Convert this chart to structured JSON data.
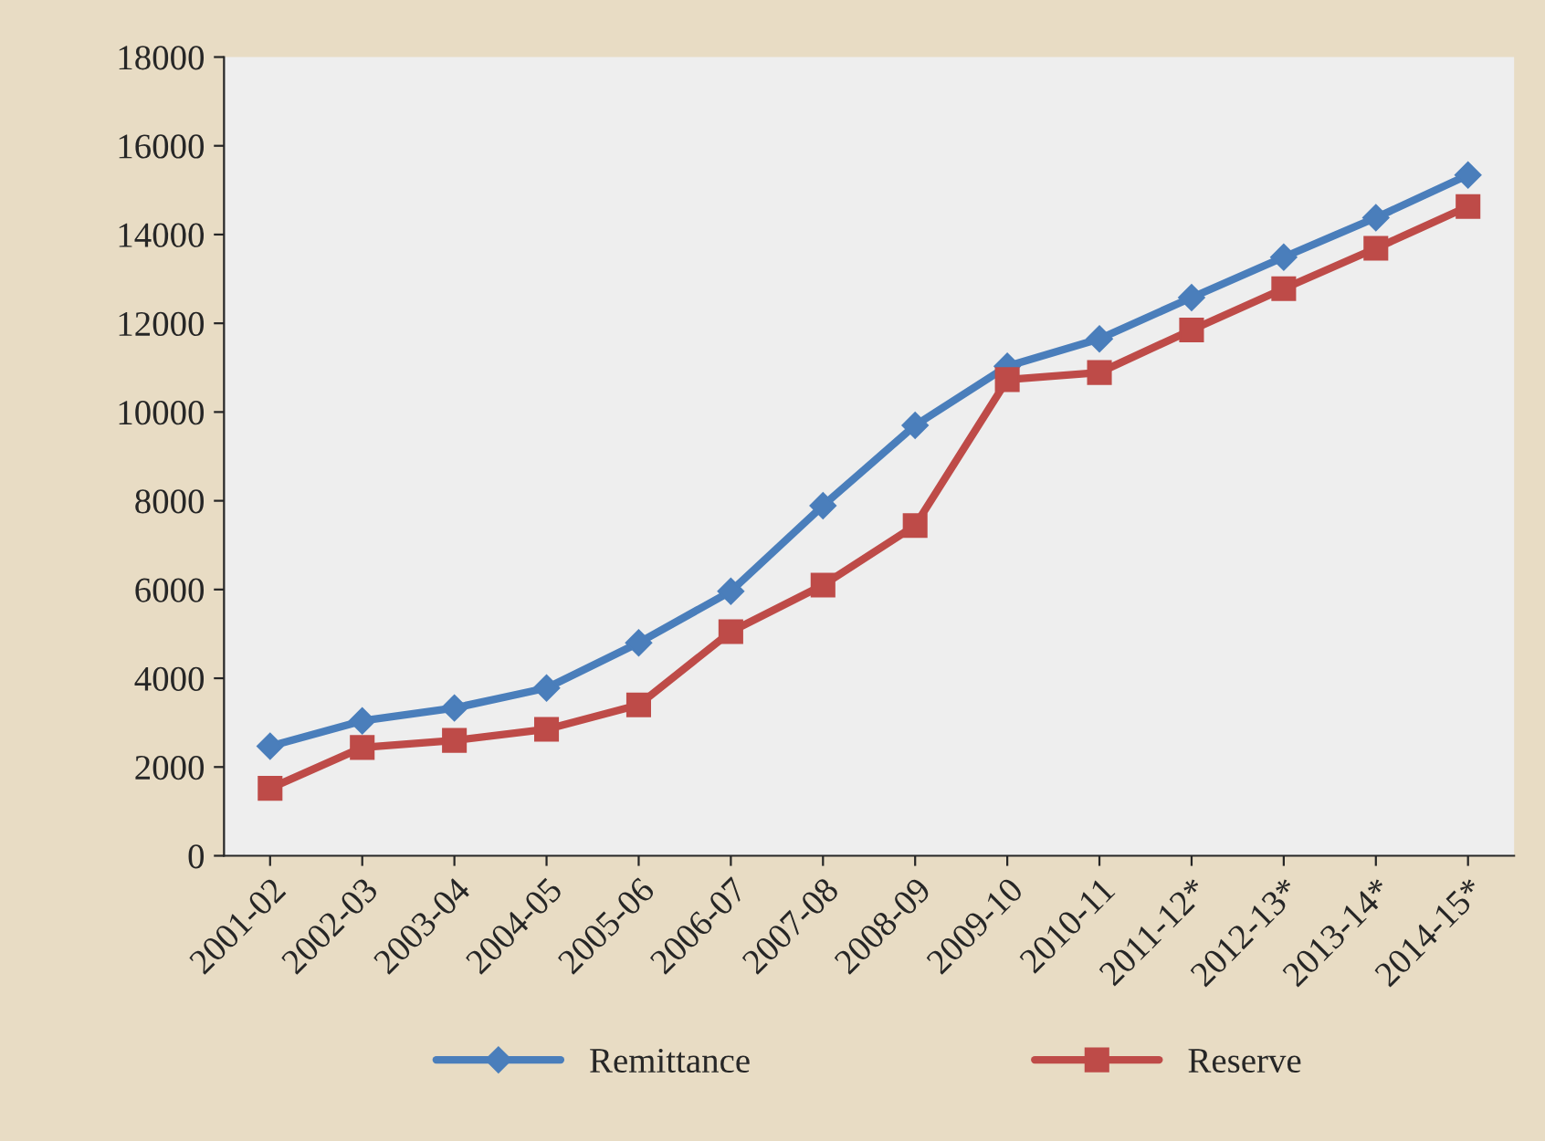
{
  "chart_data": {
    "type": "line",
    "categories": [
      "2001-02",
      "2002-03",
      "2003-04",
      "2004-05",
      "2005-06",
      "2006-07",
      "2007-08",
      "2008-09",
      "2009-10",
      "2010-11",
      "2011-12*",
      "2012-13*",
      "2013-14*",
      "2014-15*"
    ],
    "series": [
      {
        "name": "Remittance",
        "color": "#4a7ebb",
        "marker": "diamond",
        "values": [
          2470,
          3040,
          3330,
          3780,
          4800,
          5960,
          7890,
          9700,
          11030,
          11650,
          12580,
          13490,
          14380,
          15340
        ]
      },
      {
        "name": "Reserve",
        "color": "#be4b48",
        "marker": "square",
        "values": [
          1520,
          2440,
          2600,
          2850,
          3400,
          5050,
          6100,
          7440,
          10730,
          10890,
          11850,
          12780,
          13690,
          14630
        ]
      }
    ],
    "ylim": [
      0,
      18000
    ],
    "yticks": [
      0,
      2000,
      4000,
      6000,
      8000,
      10000,
      12000,
      14000,
      16000,
      18000
    ],
    "legend": "bottom",
    "grid": false
  }
}
